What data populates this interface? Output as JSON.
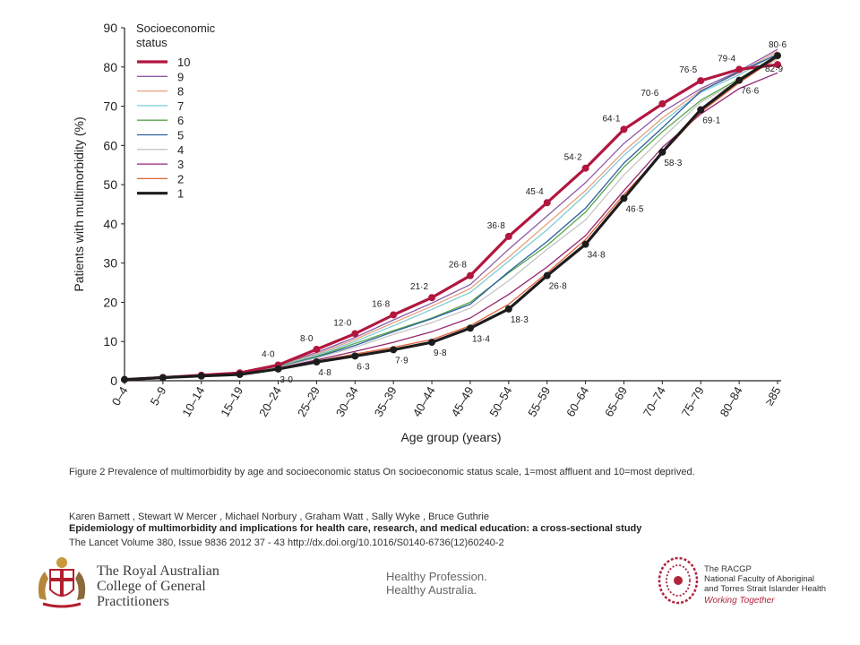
{
  "chart_data": {
    "type": "line",
    "xlabel": "Age group (years)",
    "ylabel": "Patients with multimorbidity (%)",
    "ylim": [
      0,
      90
    ],
    "yticks": [
      0,
      10,
      20,
      30,
      40,
      50,
      60,
      70,
      80,
      90
    ],
    "categories": [
      "0–4",
      "5–9",
      "10–14",
      "15–19",
      "20–24",
      "25–29",
      "30–34",
      "35–39",
      "40–44",
      "45–49",
      "50–54",
      "55–59",
      "60–64",
      "65–69",
      "70–74",
      "75–79",
      "80–84",
      "≥85"
    ],
    "legend_title": "Socioeconomic status",
    "legend_position": "top-left",
    "grid": false,
    "series": [
      {
        "name": "10",
        "color": "#b2163f",
        "width": 3.2,
        "markers": true,
        "values": [
          0.3,
          0.8,
          1.4,
          2.0,
          4.0,
          8.0,
          12.0,
          16.8,
          21.2,
          26.8,
          36.8,
          45.4,
          54.2,
          64.1,
          70.6,
          76.5,
          79.4,
          80.6
        ]
      },
      {
        "name": "9",
        "color": "#8b5ba6",
        "width": 1.3,
        "markers": false,
        "values": [
          0.3,
          0.8,
          1.4,
          2.0,
          3.9,
          7.2,
          11.0,
          15.5,
          19.8,
          24.5,
          33.5,
          42.0,
          50.5,
          60.5,
          68.5,
          74.5,
          79.0,
          84.5
        ]
      },
      {
        "name": "8",
        "color": "#e8a07e",
        "width": 1.3,
        "markers": false,
        "values": [
          0.3,
          0.8,
          1.3,
          1.9,
          3.8,
          6.8,
          10.5,
          14.8,
          19.0,
          23.5,
          31.5,
          40.0,
          48.5,
          58.5,
          67.0,
          74.0,
          78.5,
          84.0
        ]
      },
      {
        "name": "7",
        "color": "#7ecdd6",
        "width": 1.3,
        "markers": false,
        "values": [
          0.3,
          0.8,
          1.3,
          1.9,
          3.7,
          6.5,
          10.0,
          14.0,
          18.2,
          22.5,
          30.5,
          38.5,
          47.5,
          57.5,
          66.0,
          73.5,
          78.0,
          83.5
        ]
      },
      {
        "name": "6",
        "color": "#5aa64b",
        "width": 1.3,
        "markers": false,
        "values": [
          0.3,
          0.8,
          1.3,
          1.8,
          3.6,
          6.2,
          9.5,
          12.8,
          16.0,
          20.0,
          27.5,
          34.5,
          43.0,
          54.5,
          63.5,
          71.5,
          77.0,
          83.0
        ]
      },
      {
        "name": "5",
        "color": "#2b5fa0",
        "width": 1.3,
        "markers": false,
        "values": [
          0.3,
          0.8,
          1.3,
          1.8,
          3.5,
          6.0,
          9.0,
          12.5,
          15.8,
          19.5,
          27.8,
          35.5,
          44.0,
          55.5,
          64.5,
          73.8,
          78.8,
          83.2
        ]
      },
      {
        "name": "4",
        "color": "#c5c5c5",
        "width": 1.3,
        "markers": false,
        "values": [
          0.3,
          0.8,
          1.3,
          1.8,
          3.4,
          5.8,
          8.5,
          11.8,
          14.8,
          18.5,
          25.5,
          33.5,
          41.0,
          52.5,
          62.0,
          71.0,
          76.5,
          82.0
        ]
      },
      {
        "name": "3",
        "color": "#93266e",
        "width": 1.3,
        "markers": false,
        "values": [
          0.3,
          0.8,
          1.2,
          1.7,
          3.2,
          5.3,
          7.5,
          9.8,
          12.5,
          16.0,
          22.0,
          29.0,
          37.0,
          48.5,
          59.5,
          68.0,
          74.5,
          78.5
        ]
      },
      {
        "name": "2",
        "color": "#e0623b",
        "width": 1.3,
        "markers": false,
        "values": [
          0.3,
          0.8,
          1.2,
          1.6,
          3.1,
          5.0,
          6.8,
          8.5,
          10.5,
          14.0,
          19.5,
          27.5,
          36.0,
          47.5,
          58.0,
          68.5,
          76.0,
          82.5
        ]
      },
      {
        "name": "1",
        "color": "#1c1c1c",
        "width": 3.2,
        "markers": true,
        "values": [
          0.3,
          0.8,
          1.2,
          1.6,
          3.0,
          4.8,
          6.3,
          7.9,
          9.8,
          13.4,
          18.3,
          26.8,
          34.8,
          46.5,
          58.3,
          69.1,
          76.6,
          82.9
        ]
      }
    ],
    "annotations_top": [
      {
        "i": 4,
        "label": "4·0"
      },
      {
        "i": 5,
        "label": "8·0"
      },
      {
        "i": 6,
        "label": "12·0"
      },
      {
        "i": 7,
        "label": "16·8"
      },
      {
        "i": 8,
        "label": "21·2"
      },
      {
        "i": 9,
        "label": "26·8"
      },
      {
        "i": 10,
        "label": "36·8"
      },
      {
        "i": 11,
        "label": "45·4"
      },
      {
        "i": 12,
        "label": "54·2"
      },
      {
        "i": 13,
        "label": "64·1"
      },
      {
        "i": 14,
        "label": "70·6"
      },
      {
        "i": 15,
        "label": "76·5"
      },
      {
        "i": 16,
        "label": "79·4"
      },
      {
        "i": 17,
        "label": "80·6"
      }
    ],
    "annotations_bottom": [
      {
        "i": 4,
        "label": "3·0"
      },
      {
        "i": 5,
        "label": "4·8"
      },
      {
        "i": 6,
        "label": "6·3"
      },
      {
        "i": 7,
        "label": "7·9"
      },
      {
        "i": 8,
        "label": "9·8"
      },
      {
        "i": 9,
        "label": "13·4"
      },
      {
        "i": 10,
        "label": "18·3"
      },
      {
        "i": 11,
        "label": "26·8"
      },
      {
        "i": 12,
        "label": "34·8"
      },
      {
        "i": 13,
        "label": "46·5"
      },
      {
        "i": 14,
        "label": "58·3"
      },
      {
        "i": 15,
        "label": "69·1"
      },
      {
        "i": 16,
        "label": "76·6"
      },
      {
        "i": 17,
        "label": "82·9"
      }
    ]
  },
  "caption": {
    "figure": "Figure 2   Prevalence of multimorbidity by age and socioeconomic status  On socioeconomic status scale, 1=most affluent and 10=most deprived.",
    "authors": "Karen  Barnett , Stewart W  Mercer , Michael  Norbury , Graham   Watt , Sally  Wyke , Bruce  Guthrie",
    "title": "Epidemiology of multimorbidity and implications for health care, research, and medical education: a cross-sectional study",
    "citation": "The Lancet Volume 380, Issue 9836 2012 37 - 43   http://dx.doi.org/10.1016/S0140-6736(12)60240-2"
  },
  "footer": {
    "racgp_line1": "The Royal Australian",
    "racgp_line2": "College of General",
    "racgp_line3": "Practitioners",
    "tagline_line1": "Healthy Profession.",
    "tagline_line2": "Healthy Australia.",
    "faculty_line1": "The RACGP",
    "faculty_line2": "National Faculty of Aboriginal",
    "faculty_line3": "and Torres Strait Islander Health",
    "faculty_line4": "Working Together",
    "icons": [
      "coat-of-arms-icon",
      "dot-art-circle-icon"
    ]
  }
}
